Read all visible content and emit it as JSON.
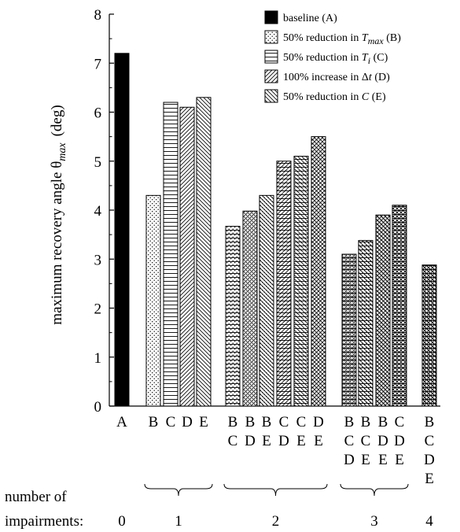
{
  "chart_data": {
    "type": "bar",
    "ylabel": "maximum recovery angle θmax (deg)",
    "ylabel_parts": {
      "main": "maximum recovery angle θ",
      "sub": "max",
      "unit": "(deg)"
    },
    "ylim": [
      0,
      8
    ],
    "yticks": [
      "0",
      "1",
      "2",
      "3",
      "4",
      "5",
      "6",
      "7",
      "8"
    ],
    "grid": false,
    "legend_position": "top-right",
    "legend": [
      {
        "key": "A",
        "pattern": "solid",
        "text": "baseline (A)",
        "parts": [
          {
            "t": "baseline (A)"
          }
        ]
      },
      {
        "key": "B",
        "pattern": "dots",
        "text": "50% reduction in Tmax (B)",
        "parts": [
          {
            "t": "50% reduction in "
          },
          {
            "t": "T",
            "italic": true
          },
          {
            "t": "max",
            "italic": true,
            "sub": true
          },
          {
            "t": " (B)"
          }
        ]
      },
      {
        "key": "C",
        "pattern": "hlines",
        "text": "50% reduction in Ti (C)",
        "parts": [
          {
            "t": "50% reduction in "
          },
          {
            "t": "T",
            "italic": true
          },
          {
            "t": "i",
            "italic": true,
            "sub": true
          },
          {
            "t": " (C)"
          }
        ]
      },
      {
        "key": "D",
        "pattern": "diag-up",
        "text": "100% increase in Δt (D)",
        "parts": [
          {
            "t": "100% increase in Δ"
          },
          {
            "t": "t",
            "italic": true
          },
          {
            "t": " (D)"
          }
        ]
      },
      {
        "key": "E",
        "pattern": "diag-down",
        "text": "50% reduction in C (E)",
        "parts": [
          {
            "t": "50% reduction in "
          },
          {
            "t": "C",
            "italic": true
          },
          {
            "t": " (E)"
          }
        ]
      }
    ],
    "bars": [
      {
        "label": [
          "A"
        ],
        "value": 7.2,
        "pattern": "solid"
      },
      {
        "label": [
          "B"
        ],
        "value": 4.3,
        "pattern": "dots"
      },
      {
        "label": [
          "C"
        ],
        "value": 6.2,
        "pattern": "hlines"
      },
      {
        "label": [
          "D"
        ],
        "value": 6.1,
        "pattern": "diag-up"
      },
      {
        "label": [
          "E"
        ],
        "value": 6.3,
        "pattern": "diag-down"
      },
      {
        "label": [
          "B",
          "C"
        ],
        "value": 3.67,
        "pattern": "dots+hlines"
      },
      {
        "label": [
          "B",
          "D"
        ],
        "value": 3.98,
        "pattern": "dots+diag-up"
      },
      {
        "label": [
          "B",
          "E"
        ],
        "value": 4.3,
        "pattern": "dots+diag-down"
      },
      {
        "label": [
          "C",
          "D"
        ],
        "value": 5.0,
        "pattern": "hlines+diag-up"
      },
      {
        "label": [
          "C",
          "E"
        ],
        "value": 5.1,
        "pattern": "hlines+diag-down"
      },
      {
        "label": [
          "D",
          "E"
        ],
        "value": 5.5,
        "pattern": "cross"
      },
      {
        "label": [
          "B",
          "C",
          "D"
        ],
        "value": 3.1,
        "pattern": "dots+hlines+diag-up"
      },
      {
        "label": [
          "B",
          "C",
          "E"
        ],
        "value": 3.38,
        "pattern": "dots+hlines+diag-down"
      },
      {
        "label": [
          "B",
          "D",
          "E"
        ],
        "value": 3.9,
        "pattern": "dots+cross"
      },
      {
        "label": [
          "C",
          "D",
          "E"
        ],
        "value": 4.1,
        "pattern": "hlines+cross"
      },
      {
        "label": [
          "B",
          "C",
          "D",
          "E"
        ],
        "value": 2.88,
        "pattern": "dots+hlines+cross"
      }
    ],
    "impairments": {
      "label_line1": "number of",
      "label_line2": "impairments:",
      "groups": [
        {
          "count": "0",
          "from": 0,
          "to": 0,
          "brace": false
        },
        {
          "count": "1",
          "from": 1,
          "to": 4,
          "brace": true
        },
        {
          "count": "2",
          "from": 5,
          "to": 10,
          "brace": true
        },
        {
          "count": "3",
          "from": 11,
          "to": 14,
          "brace": true
        },
        {
          "count": "4",
          "from": 15,
          "to": 15,
          "brace": false
        }
      ]
    }
  }
}
